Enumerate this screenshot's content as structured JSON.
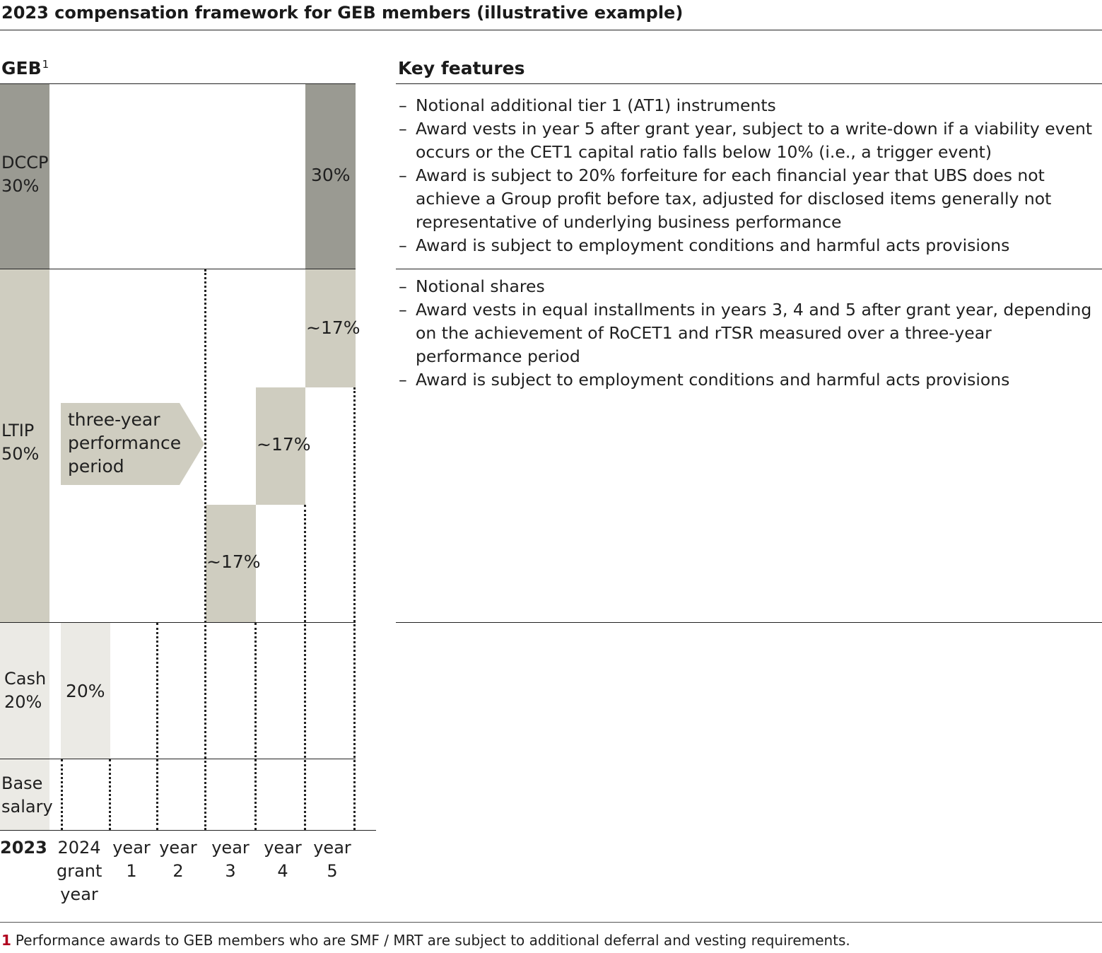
{
  "title": "2023 compensation framework for GEB members (illustrative example)",
  "left_heading": {
    "label": "GEB",
    "sup": "1"
  },
  "right_heading": "Key features",
  "components": {
    "dccp": {
      "label": "DCCP\n30%",
      "vest_label": "30%",
      "share_pct": 30
    },
    "ltip": {
      "label": "LTIP\n50%",
      "share_pct": 50,
      "installments": [
        "~17%",
        "~17%",
        "~17%"
      ],
      "performance_period": "three-year\nperformance\nperiod"
    },
    "cash": {
      "label": "Cash\n20%",
      "grant_label": "20%",
      "share_pct": 20
    },
    "base": {
      "label": "Base\nsalary"
    }
  },
  "timeline": [
    "2023",
    "2024\ngrant\nyear",
    "year\n1",
    "year\n2",
    "year\n3",
    "year\n4",
    "year\n5"
  ],
  "dccp_features": [
    "Notional additional tier 1 (AT1) instruments",
    "Award vests in year 5 after grant year, subject to a write-down if a viability event occurs or the CET1 capital ratio falls below 10% (i.e., a trigger event)",
    "Award is subject to 20% forfeiture for each financial year that UBS does not achieve a Group profit before tax, adjusted for disclosed items generally not representative of underlying business performance",
    "Award is subject to employment conditions and harmful acts provisions"
  ],
  "ltip_features": [
    "Notional shares",
    "Award vests in equal installments in years 3, 4 and 5 after grant year, depending on the achievement of RoCET1 and rTSR measured over a three-year performance period",
    "Award is subject to employment conditions and harmful acts provisions"
  ],
  "bullet_dash": "–",
  "footnote": {
    "number": "1",
    "text": "Performance awards to GEB members who are SMF / MRT are subject to additional deferral and vesting requirements."
  },
  "colors": {
    "dccp": "#9a9a92",
    "ltip": "#cfcdc0",
    "cash": "#ebeae5",
    "footnote_marker": "#b0001e"
  }
}
